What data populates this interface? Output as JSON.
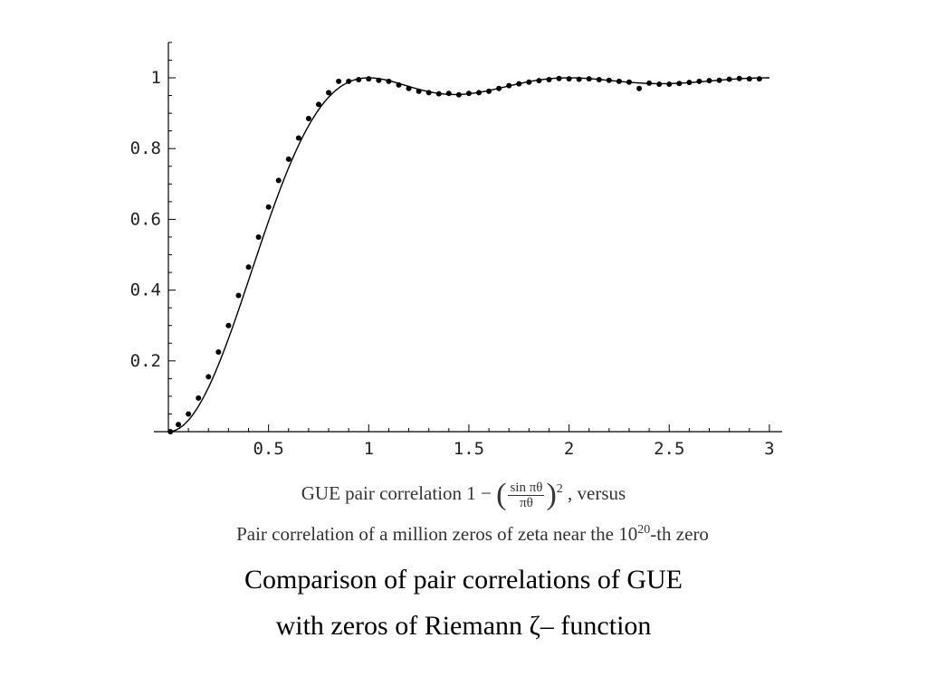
{
  "chart_data": {
    "type": "line",
    "xlabel": "",
    "ylabel": "",
    "xlim": [
      0,
      3.05
    ],
    "ylim": [
      0,
      1.1
    ],
    "xticks": [
      0.5,
      1,
      1.5,
      2,
      2.5,
      3
    ],
    "xtick_labels": [
      "0.5",
      "1",
      "1.5",
      "2",
      "2.5",
      "3"
    ],
    "yticks": [
      0.2,
      0.4,
      0.6,
      0.8,
      1
    ],
    "ytick_labels": [
      "0.2",
      "0.4",
      "0.6",
      "0.8",
      "1"
    ],
    "grid": false,
    "series": [
      {
        "kind": "curve",
        "formula": "1 - (sin(pi*theta)/(pi*theta))^2",
        "x_range": [
          0,
          3
        ],
        "color": "#000000"
      },
      {
        "kind": "points",
        "color": "#000000",
        "x": [
          0.01,
          0.05,
          0.1,
          0.15,
          0.2,
          0.25,
          0.3,
          0.35,
          0.4,
          0.45,
          0.5,
          0.55,
          0.6,
          0.65,
          0.7,
          0.75,
          0.8,
          0.85,
          0.9,
          0.95,
          1.0,
          1.05,
          1.1,
          1.15,
          1.2,
          1.25,
          1.3,
          1.35,
          1.4,
          1.45,
          1.5,
          1.55,
          1.6,
          1.65,
          1.7,
          1.75,
          1.8,
          1.85,
          1.9,
          1.95,
          2.0,
          2.05,
          2.1,
          2.15,
          2.2,
          2.25,
          2.3,
          2.35,
          2.4,
          2.45,
          2.5,
          2.55,
          2.6,
          2.65,
          2.7,
          2.75,
          2.8,
          2.85,
          2.9,
          2.95
        ],
        "y": [
          0.0,
          0.02,
          0.05,
          0.095,
          0.155,
          0.225,
          0.3,
          0.385,
          0.465,
          0.55,
          0.635,
          0.71,
          0.77,
          0.83,
          0.885,
          0.925,
          0.958,
          0.99,
          0.99,
          0.995,
          0.997,
          0.993,
          0.99,
          0.98,
          0.97,
          0.962,
          0.958,
          0.955,
          0.956,
          0.952,
          0.956,
          0.958,
          0.962,
          0.97,
          0.978,
          0.983,
          0.988,
          0.992,
          0.995,
          0.998,
          0.997,
          0.996,
          0.997,
          0.995,
          0.993,
          0.99,
          0.988,
          0.97,
          0.985,
          0.982,
          0.982,
          0.984,
          0.987,
          0.99,
          0.992,
          0.993,
          0.996,
          0.998,
          0.997,
          0.997
        ]
      }
    ]
  },
  "caption_line1": {
    "prefix": "GUE pair correlation 1 − ",
    "num": "sin πθ",
    "den": "πθ",
    "exp": "2",
    "suffix": " , versus"
  },
  "caption_line2": {
    "prefix": "Pair correlation of a million zeros of zeta near the 10",
    "exp": "20",
    "suffix": "-th zero"
  },
  "title": {
    "line1": "Comparison of pair correlations of GUE",
    "line2": "with zeros of Riemann  ζ– function"
  }
}
